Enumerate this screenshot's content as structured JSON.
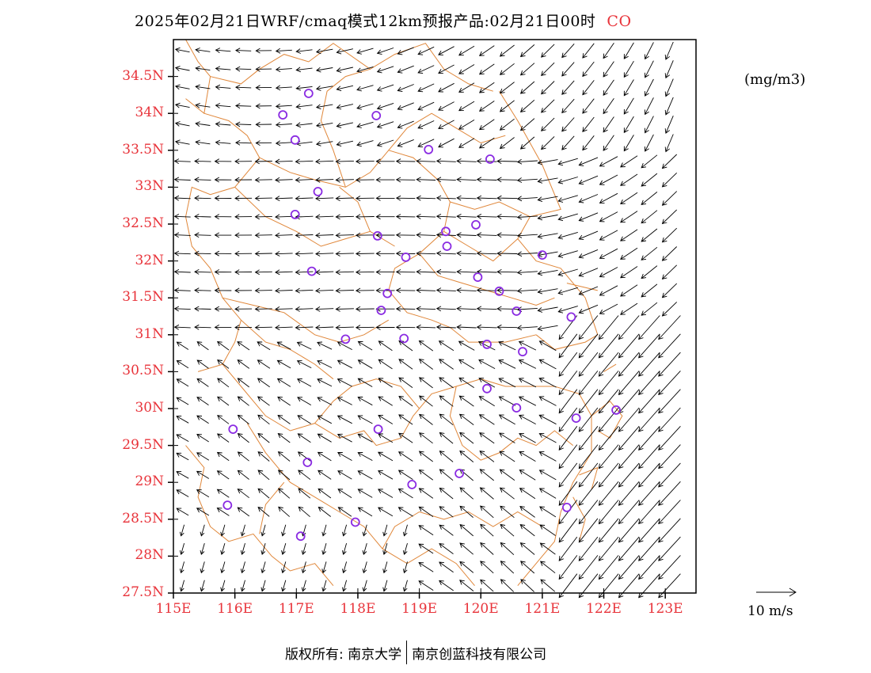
{
  "title": "2025年02月21日WRF/cmaq模式12km预报产品:02月21日00时",
  "pollutant": "CO",
  "unit_label": "(mg/m3)",
  "vector_legend": "10  m/s",
  "copyright": {
    "left": "版权所有: 南京大学",
    "right": "南京创蓝科技有限公司"
  },
  "map": {
    "lon_range": [
      115,
      123.5
    ],
    "lat_range": [
      27.5,
      35
    ],
    "x_ticks": [
      "115E",
      "116E",
      "117E",
      "118E",
      "119E",
      "120E",
      "121E",
      "122E",
      "123E"
    ],
    "y_ticks": [
      "27.5N",
      "28N",
      "28.5N",
      "29N",
      "29.5N",
      "30N",
      "30.5N",
      "31N",
      "31.5N",
      "32N",
      "32.5N",
      "33N",
      "33.5N",
      "34N",
      "34.5N"
    ],
    "colors": {
      "tick_labels": "#e8333a",
      "boundaries": "#e0873a",
      "stations": "#8a2be2",
      "vectors": "#000000"
    }
  },
  "stations": [
    {
      "lon": 117.2,
      "lat": 34.27
    },
    {
      "lon": 116.78,
      "lat": 33.98
    },
    {
      "lon": 118.3,
      "lat": 33.97
    },
    {
      "lon": 116.98,
      "lat": 33.64
    },
    {
      "lon": 119.15,
      "lat": 33.51
    },
    {
      "lon": 120.15,
      "lat": 33.38
    },
    {
      "lon": 117.35,
      "lat": 32.94
    },
    {
      "lon": 116.98,
      "lat": 32.63
    },
    {
      "lon": 119.92,
      "lat": 32.49
    },
    {
      "lon": 118.32,
      "lat": 32.34
    },
    {
      "lon": 119.43,
      "lat": 32.4
    },
    {
      "lon": 119.45,
      "lat": 32.2
    },
    {
      "lon": 118.78,
      "lat": 32.05
    },
    {
      "lon": 121.0,
      "lat": 32.08
    },
    {
      "lon": 117.25,
      "lat": 31.86
    },
    {
      "lon": 119.95,
      "lat": 31.78
    },
    {
      "lon": 120.3,
      "lat": 31.59
    },
    {
      "lon": 118.48,
      "lat": 31.56
    },
    {
      "lon": 118.38,
      "lat": 31.33
    },
    {
      "lon": 120.58,
      "lat": 31.32
    },
    {
      "lon": 121.47,
      "lat": 31.24
    },
    {
      "lon": 117.8,
      "lat": 30.94
    },
    {
      "lon": 118.75,
      "lat": 30.95
    },
    {
      "lon": 120.1,
      "lat": 30.87
    },
    {
      "lon": 120.68,
      "lat": 30.77
    },
    {
      "lon": 120.1,
      "lat": 30.27
    },
    {
      "lon": 120.58,
      "lat": 30.01
    },
    {
      "lon": 121.55,
      "lat": 29.87
    },
    {
      "lon": 122.2,
      "lat": 29.98
    },
    {
      "lon": 115.97,
      "lat": 29.72
    },
    {
      "lon": 118.33,
      "lat": 29.72
    },
    {
      "lon": 117.18,
      "lat": 29.27
    },
    {
      "lon": 119.65,
      "lat": 29.12
    },
    {
      "lon": 118.88,
      "lat": 28.97
    },
    {
      "lon": 115.88,
      "lat": 28.69
    },
    {
      "lon": 121.4,
      "lat": 28.66
    },
    {
      "lon": 117.96,
      "lat": 28.46
    },
    {
      "lon": 117.07,
      "lat": 28.27
    }
  ]
}
